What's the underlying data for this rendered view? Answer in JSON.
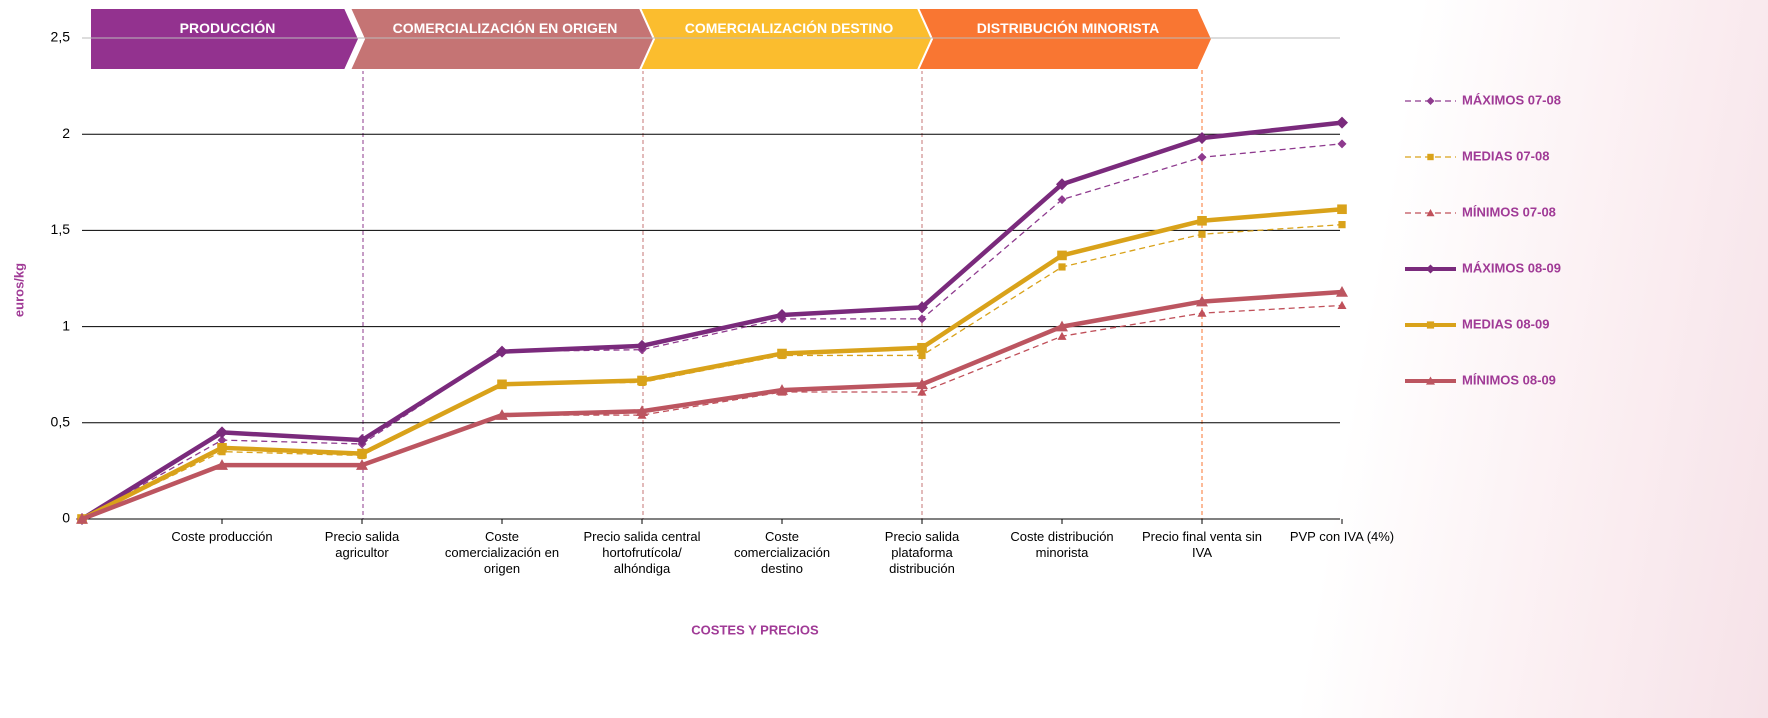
{
  "chart_data": {
    "type": "line",
    "y_label": "euros/kg",
    "x_label": "COSTES Y PRECIOS",
    "phases": [
      {
        "label": "PRODUCCIÓN",
        "color": "#93328f"
      },
      {
        "label": "COMERCIALIZACIÓN EN ORIGEN",
        "color": "#c57474"
      },
      {
        "label": "COMERCIALIZACIÓN DESTINO",
        "color": "#fbbd2e"
      },
      {
        "label": "DISTRIBUCIÓN MINORISTA",
        "color": "#f97632"
      }
    ],
    "categories": [
      null,
      "Coste producción",
      "Precio salida agricultor",
      "Coste comercialización en origen",
      "Precio salida central hortofrutícola/ alhóndiga",
      "Coste comercialización destino",
      "Precio salida plataforma distribución",
      "Coste distribución minorista",
      "Precio final venta sin IVA",
      "PVP con IVA (4%)"
    ],
    "ylim": [
      0,
      2.5
    ],
    "yticks": [
      0,
      {
        "value": 0.5,
        "label": "0,5"
      },
      1,
      {
        "value": 1.5,
        "label": "1,5"
      },
      2,
      {
        "value": 2.5,
        "label": "2,5"
      }
    ],
    "grid": true,
    "legend": "right",
    "series": [
      {
        "name": "MÁXIMOS 07-08",
        "color": "#8e3a8e",
        "line_style": "dashed",
        "marker": "diamond",
        "values": [
          0,
          0.41,
          0.39,
          0.87,
          0.88,
          1.04,
          1.04,
          1.66,
          1.88,
          1.95
        ]
      },
      {
        "name": "MEDIAS 07-08",
        "color": "#d9a21a",
        "line_style": "dashed",
        "marker": "square",
        "values": [
          0,
          0.35,
          0.33,
          0.7,
          0.71,
          0.85,
          0.85,
          1.31,
          1.48,
          1.53
        ]
      },
      {
        "name": "MÍNIMOS 07-08",
        "color": "#c0505a",
        "line_style": "dashed",
        "marker": "triangle",
        "values": [
          0,
          0.28,
          0.28,
          0.54,
          0.54,
          0.66,
          0.66,
          0.95,
          1.07,
          1.11
        ]
      },
      {
        "name": "MÁXIMOS 08-09",
        "color": "#7a2a7c",
        "line_style": "solid",
        "marker": "diamond",
        "values": [
          0,
          0.45,
          0.41,
          0.87,
          0.9,
          1.06,
          1.1,
          1.74,
          1.98,
          2.06
        ]
      },
      {
        "name": "MEDIAS 08-09",
        "color": "#d9a21a",
        "line_style": "solid",
        "marker": "square",
        "values": [
          0,
          0.37,
          0.34,
          0.7,
          0.72,
          0.86,
          0.89,
          1.37,
          1.55,
          1.61
        ]
      },
      {
        "name": "MÍNIMOS 08-09",
        "color": "#bc5560",
        "line_style": "solid",
        "marker": "triangle",
        "values": [
          0,
          0.28,
          0.28,
          0.54,
          0.56,
          0.67,
          0.7,
          1.0,
          1.13,
          1.18
        ]
      }
    ]
  }
}
